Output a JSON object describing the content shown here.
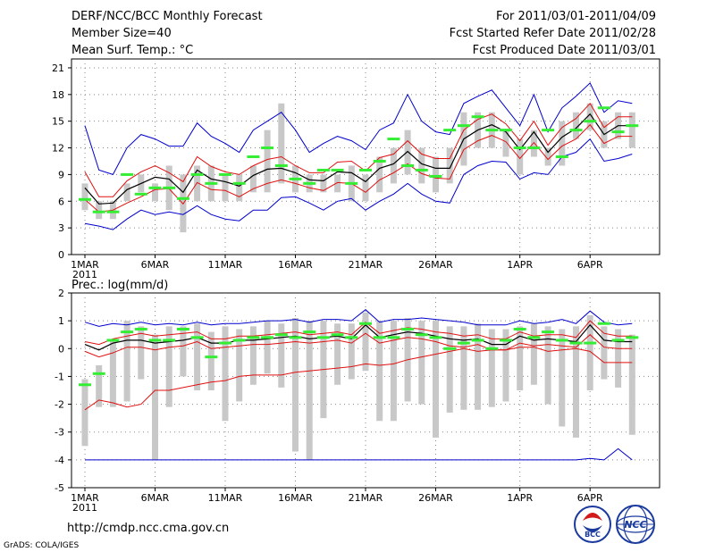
{
  "header": {
    "title": "DERF/NCC/BCC Monthly Forecast",
    "member_size": "Member Size=40",
    "variable": "Mean Surf. Temp.: °C",
    "period": "For 2011/03/01-2011/04/09",
    "start_date": "Fcst Started Refer Date 2011/02/28",
    "produced_date": "Fcst Produced Date 2011/03/01"
  },
  "footer": {
    "url": "http://cmdp.ncc.cma.gov.cn",
    "credit": "GrADS: COLA/IGES",
    "logo_bcc": "BCC",
    "logo_ncc": "NCC"
  },
  "colors": {
    "box": "#c8c8c8",
    "median": "#000000",
    "spread": "#e01010",
    "extreme": "#0000cc",
    "obs": "#33ee33"
  },
  "chart_data": [
    {
      "type": "line",
      "title": "Mean Surf. Temp.: °C",
      "x_labels": [
        "1MAR",
        "6MAR",
        "11MAR",
        "16MAR",
        "21MAR",
        "26MAR",
        "1APR",
        "6APR"
      ],
      "x_label_days": [
        1,
        6,
        11,
        16,
        21,
        26,
        32,
        37
      ],
      "year_label": "2011",
      "days": [
        1,
        2,
        3,
        4,
        5,
        6,
        7,
        8,
        9,
        10,
        11,
        12,
        13,
        14,
        15,
        16,
        17,
        18,
        19,
        20,
        21,
        22,
        23,
        24,
        25,
        26,
        27,
        28,
        29,
        30,
        31,
        32,
        33,
        34,
        35,
        36,
        37,
        38,
        39,
        40
      ],
      "ylim": [
        0,
        22
      ],
      "yticks": [
        0,
        3,
        6,
        9,
        12,
        15,
        18,
        21
      ],
      "series": [
        {
          "name": "max",
          "values": [
            14.5,
            9.5,
            9,
            12,
            13.5,
            13,
            12.2,
            12.2,
            14.8,
            13.3,
            12.5,
            11.5,
            14,
            15,
            16,
            14,
            11.5,
            12.5,
            13.3,
            12.8,
            11.8,
            14,
            14.8,
            18,
            15,
            13.8,
            13.5,
            17,
            17.8,
            18.5,
            16.5,
            14.5,
            18,
            13.8,
            16.5,
            17.8,
            19.3,
            16,
            17.3,
            17
          ]
        },
        {
          "name": "upper",
          "values": [
            9.3,
            6.5,
            6.5,
            8.3,
            9.3,
            10,
            9.2,
            8.2,
            11,
            9.9,
            9.3,
            9,
            10,
            10.7,
            11,
            10,
            9.2,
            9.2,
            10.4,
            10.5,
            9.4,
            10.9,
            11.3,
            12.8,
            11.3,
            10.8,
            10.8,
            14,
            15.2,
            15.8,
            14.7,
            12.8,
            15,
            12.3,
            14.3,
            15.3,
            17,
            14.3,
            15.5,
            15.5
          ]
        },
        {
          "name": "median",
          "values": [
            7.5,
            5.7,
            5.8,
            7.3,
            8,
            8.7,
            8.5,
            7,
            9.5,
            8.5,
            8.2,
            7.7,
            8.9,
            9.6,
            9.7,
            9.2,
            8.4,
            8.3,
            9.3,
            9.2,
            8.2,
            9.7,
            10.2,
            11.6,
            10.2,
            9.7,
            9.7,
            13,
            14,
            14.6,
            13.8,
            11.8,
            13.8,
            11.5,
            13.2,
            14.2,
            15.8,
            13.5,
            14.5,
            14.5
          ]
        },
        {
          "name": "lower",
          "values": [
            6.2,
            4.8,
            5,
            5.8,
            6.5,
            7.3,
            7.4,
            5.7,
            8.1,
            7.3,
            7.2,
            6.5,
            7.4,
            8,
            8.4,
            8,
            7.5,
            7.2,
            8.1,
            8,
            7,
            8.4,
            9.2,
            10.2,
            9.1,
            8.6,
            8.5,
            11.8,
            12.8,
            13.4,
            12.7,
            10.8,
            12.6,
            10.7,
            12.2,
            13,
            14.6,
            12.5,
            13.3,
            13.3
          ]
        },
        {
          "name": "min",
          "values": [
            3.5,
            3.2,
            2.8,
            4,
            5,
            4.5,
            4.8,
            4.5,
            5.5,
            4.5,
            4,
            3.8,
            5,
            5,
            6.4,
            6.5,
            5.8,
            5,
            6,
            6.3,
            5,
            6,
            6.8,
            8,
            6.8,
            6,
            5.8,
            9,
            10,
            10.5,
            10.4,
            8.5,
            9.2,
            9,
            11,
            11.5,
            13,
            10.5,
            10.8,
            11.3
          ]
        },
        {
          "name": "box_high",
          "values": [
            8,
            6,
            6,
            8,
            9,
            8,
            10,
            9,
            10,
            10,
            9,
            9,
            10,
            14,
            17,
            10,
            9,
            9,
            9,
            10,
            9,
            11,
            12,
            14,
            12,
            11,
            12,
            16,
            16,
            16,
            14,
            13,
            14,
            12,
            15,
            16,
            17,
            15,
            16,
            16
          ]
        },
        {
          "name": "box_low",
          "values": [
            5,
            4,
            4,
            6,
            7,
            6,
            5,
            2.5,
            6,
            6,
            6,
            6,
            7,
            7,
            8,
            7,
            7,
            7,
            7,
            6,
            6,
            7,
            8,
            9,
            8,
            7,
            8,
            10,
            12,
            12,
            11,
            9,
            11,
            10,
            10,
            13,
            14,
            12,
            13,
            12
          ]
        },
        {
          "name": "observed",
          "values": [
            6.2,
            4.8,
            4.8,
            9,
            6.8,
            7.5,
            7.5,
            6.3,
            9,
            8,
            9,
            8,
            11,
            12,
            10,
            8.5,
            8,
            9.5,
            9.5,
            8,
            9.5,
            10.5,
            13,
            10,
            9.5,
            8.8,
            14,
            14.5,
            15.5,
            14,
            14,
            12,
            12,
            14,
            11,
            14,
            15,
            16.5,
            13.8,
            14.5
          ]
        }
      ]
    },
    {
      "type": "line",
      "title": "Prec.: log(mm/d)",
      "x_labels": [
        "1MAR",
        "6MAR",
        "11MAR",
        "16MAR",
        "21MAR",
        "26MAR",
        "1APR",
        "6APR"
      ],
      "x_label_days": [
        1,
        6,
        11,
        16,
        21,
        26,
        32,
        37
      ],
      "year_label": "2011",
      "days": [
        1,
        2,
        3,
        4,
        5,
        6,
        7,
        8,
        9,
        10,
        11,
        12,
        13,
        14,
        15,
        16,
        17,
        18,
        19,
        20,
        21,
        22,
        23,
        24,
        25,
        26,
        27,
        28,
        29,
        30,
        31,
        32,
        33,
        34,
        35,
        36,
        37,
        38,
        39,
        40
      ],
      "ylim": [
        -5,
        2
      ],
      "yticks": [
        -5,
        -4,
        -3,
        -2,
        -1,
        0,
        1,
        2
      ],
      "series": [
        {
          "name": "max",
          "values": [
            0.95,
            0.8,
            0.9,
            0.85,
            0.95,
            0.85,
            0.9,
            0.85,
            0.95,
            0.85,
            0.9,
            0.9,
            0.95,
            1,
            1,
            1.05,
            0.95,
            1.05,
            1.05,
            1,
            1.4,
            0.95,
            1.05,
            1.05,
            1.1,
            1.05,
            1,
            0.95,
            0.85,
            0.85,
            0.85,
            1,
            0.9,
            0.95,
            1.05,
            0.9,
            1.35,
            0.95,
            0.85,
            0.9
          ]
        },
        {
          "name": "upper",
          "values": [
            0.25,
            0.15,
            0.35,
            0.45,
            0.55,
            0.45,
            0.5,
            0.55,
            0.6,
            0.35,
            0.35,
            0.45,
            0.45,
            0.5,
            0.55,
            0.6,
            0.5,
            0.55,
            0.6,
            0.5,
            0.95,
            0.55,
            0.65,
            0.75,
            0.7,
            0.6,
            0.55,
            0.45,
            0.5,
            0.35,
            0.35,
            0.6,
            0.45,
            0.5,
            0.5,
            0.4,
            1,
            0.55,
            0.45,
            0.45
          ]
        },
        {
          "name": "median",
          "values": [
            0.15,
            -0.05,
            0.2,
            0.3,
            0.3,
            0.2,
            0.25,
            0.3,
            0.4,
            0.2,
            0.2,
            0.3,
            0.3,
            0.35,
            0.4,
            0.45,
            0.35,
            0.4,
            0.45,
            0.35,
            0.85,
            0.4,
            0.5,
            0.6,
            0.55,
            0.45,
            0.35,
            0.3,
            0.35,
            0.15,
            0.15,
            0.45,
            0.3,
            0.35,
            0.3,
            0.25,
            0.85,
            0.3,
            0.25,
            0.25
          ]
        },
        {
          "name": "lower",
          "values": [
            -0.1,
            -0.3,
            -0.15,
            0.05,
            0.05,
            -0.05,
            0.05,
            0.1,
            0.25,
            0,
            0.05,
            0.1,
            0.15,
            0.15,
            0.2,
            0.25,
            0.2,
            0.25,
            0.3,
            0.2,
            0.55,
            0.2,
            0.3,
            0.4,
            0.35,
            0.25,
            0.1,
            0.05,
            0.15,
            -0.05,
            -0.05,
            0.2,
            0.1,
            0.15,
            0.1,
            0.05,
            0.5,
            0.05,
            0,
            0
          ]
        },
        {
          "name": "min",
          "values": [
            -2.2,
            -1.85,
            -1.95,
            -2.1,
            -2,
            -1.5,
            -1.5,
            -1.4,
            -1.3,
            -1.2,
            -1.15,
            -1,
            -0.95,
            -0.95,
            -0.95,
            -0.85,
            -0.8,
            -0.75,
            -0.7,
            -0.65,
            -0.55,
            -0.6,
            -0.55,
            -0.4,
            -0.3,
            -0.2,
            -0.1,
            0,
            -0.1,
            -0.05,
            -0.05,
            0.05,
            0.05,
            -0.1,
            -0.05,
            0,
            -0.1,
            -0.5,
            -0.5,
            -0.5
          ]
        },
        {
          "name": "floor",
          "values": [
            -4,
            -4,
            -4,
            -4,
            -4,
            -4,
            -4,
            -4,
            -4,
            -4,
            -4,
            -4,
            -4,
            -4,
            -4,
            -4,
            -4,
            -4,
            -4,
            -4,
            -4,
            -4,
            -4,
            -4,
            -4,
            -4,
            -4,
            -4,
            -4,
            -4,
            -4,
            -4,
            -4,
            -4,
            -4,
            -4,
            -3.95,
            -4,
            -3.6,
            -4
          ]
        },
        {
          "name": "box_high",
          "values": [
            -1.1,
            -0.6,
            0.3,
            1.0,
            0.8,
            0.5,
            0.8,
            0.8,
            0.9,
            0.6,
            0.8,
            0.7,
            0.8,
            1.0,
            0.9,
            1.1,
            1.0,
            1.0,
            0.9,
            0.9,
            1.3,
            1.0,
            1.0,
            1.1,
            1.0,
            1.0,
            0.8,
            0.8,
            0.9,
            0.7,
            0.7,
            0.8,
            0.9,
            0.8,
            0.7,
            0.8,
            1.2,
            0.8,
            0.7,
            0.5
          ]
        },
        {
          "name": "box_low",
          "values": [
            -3.5,
            -2.1,
            -2.1,
            -1.9,
            -1.1,
            -4,
            -2.1,
            -1,
            -1.5,
            -1.5,
            -2.6,
            -1.9,
            -1.3,
            -0.9,
            -1.4,
            -3.7,
            -4,
            -2.5,
            -1.3,
            -1.1,
            -0.8,
            -2.6,
            -2.6,
            -1.9,
            -2.0,
            -3.2,
            -2.3,
            -2.2,
            -2.2,
            -2.1,
            -1.9,
            -1.5,
            -1.3,
            -2.0,
            -2.8,
            -3.2,
            -1.5,
            -1.1,
            -1.4,
            -3.1
          ]
        },
        {
          "name": "observed",
          "values": [
            -1.3,
            -0.9,
            0.3,
            0.6,
            0.7,
            0.3,
            0.3,
            0.7,
            0.4,
            -0.3,
            0.2,
            0.3,
            0.4,
            0.4,
            0.5,
            0.4,
            0.6,
            0.4,
            0.5,
            0.4,
            0.9,
            0.4,
            0.4,
            0.7,
            0.5,
            0.4,
            0,
            0.2,
            0.3,
            0,
            0.3,
            0.7,
            0.4,
            0.6,
            0.3,
            0.2,
            0.2,
            0.9,
            0.3,
            0.4
          ]
        }
      ]
    }
  ]
}
